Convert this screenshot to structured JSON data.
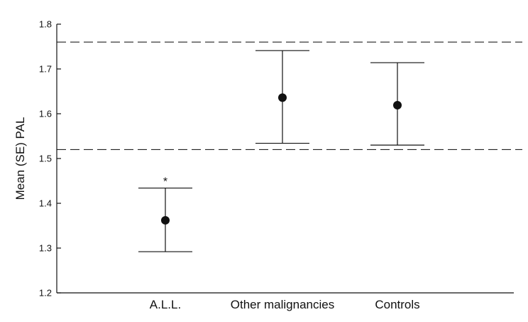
{
  "chart_data": {
    "type": "scatter",
    "title": "",
    "xlabel": "",
    "ylabel": "Mean (SE) PAL",
    "categories": [
      "A.L.L.",
      "Other malignancies",
      "Controls"
    ],
    "series": [
      {
        "means": [
          1.362,
          1.636,
          1.619
        ],
        "upper": [
          1.434,
          1.741,
          1.714
        ],
        "lower": [
          1.292,
          1.534,
          1.53
        ]
      }
    ],
    "ylim": [
      1.2,
      1.8
    ],
    "yticks": [
      "1.2",
      "1.3",
      "1.4",
      "1.5",
      "1.6",
      "1.7",
      "1.8"
    ],
    "reference_lines": [
      1.76,
      1.52
    ],
    "annotations": [
      {
        "category": "A.L.L.",
        "text": "*"
      }
    ],
    "grid": false,
    "legend": "none"
  }
}
